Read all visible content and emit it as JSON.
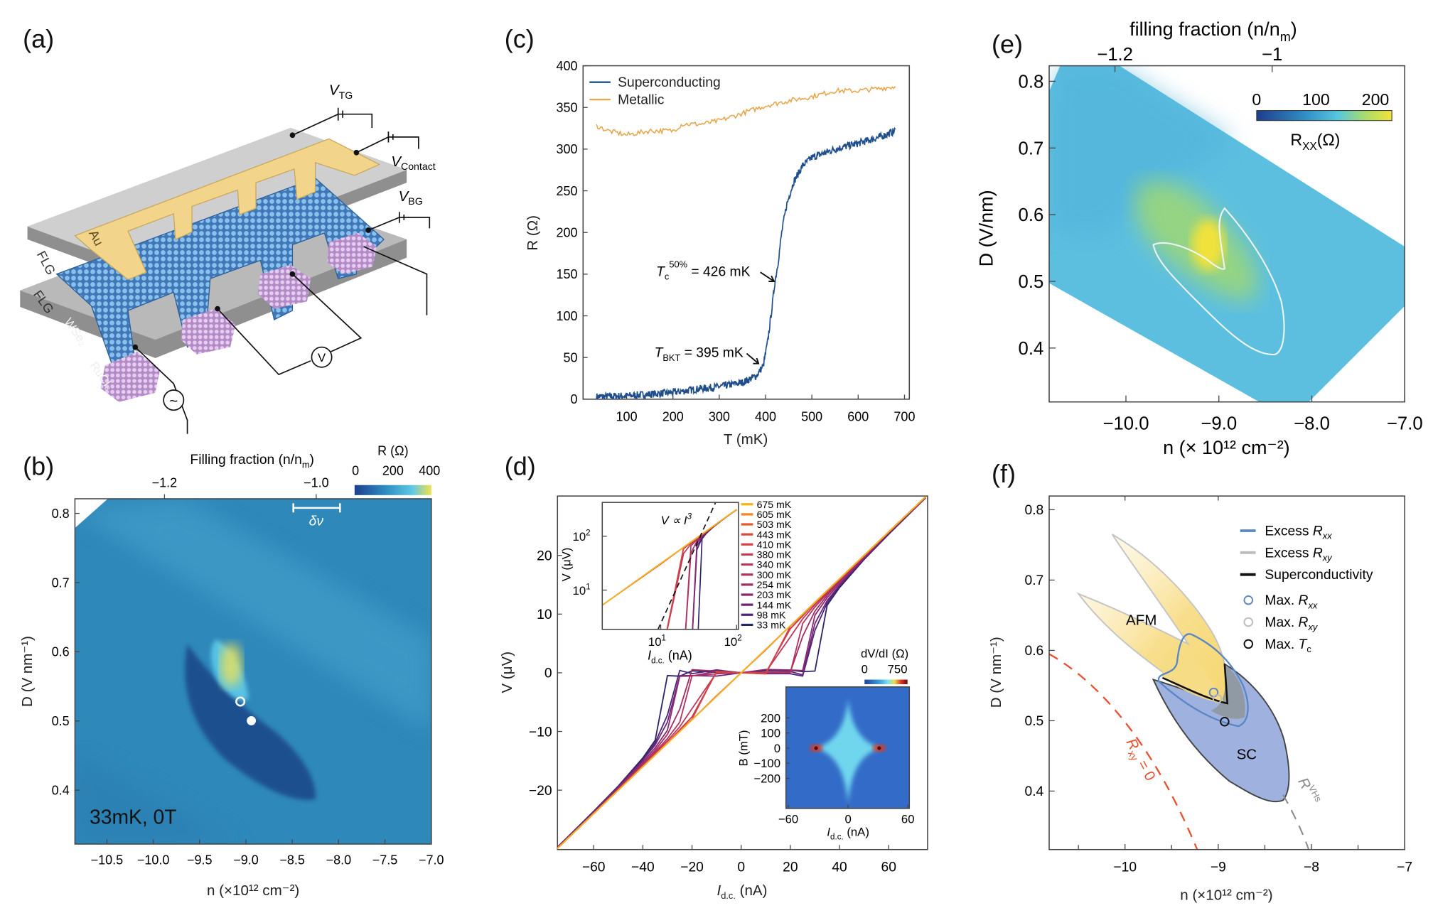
{
  "panel_labels": [
    "(a)",
    "(b)",
    "(c)",
    "(d)",
    "(e)",
    "(f)"
  ],
  "panel_a": {
    "v_tg": "V",
    "v_tg_sub": "TG",
    "v_contact": "V",
    "v_contact_sub": "Contact",
    "v_bg": "V",
    "v_bg_sub": "BG",
    "flg_top": "FLG",
    "au": "Au",
    "flg_bottom": "FLG",
    "wse2": "WSe₂",
    "rucl3": "RuCl₃",
    "voltmeter": "V",
    "ac_source": "~",
    "colors": {
      "gold": "#f2d58a",
      "lattice": "#5b9bd5",
      "pads": "#c9a3d8",
      "slab": "#9a9a9a"
    }
  },
  "chart_data": [
    {
      "panel": "b",
      "type": "heatmap",
      "xlabel": "n (×10¹² cm⁻²)",
      "ylabel": "D (V nm⁻¹)",
      "top_label": "Filling fraction (n/n",
      "top_label_sub": "m",
      "xticks": [
        -10.5,
        -10.0,
        -9.5,
        -9.0,
        -8.5,
        -8.0,
        -7.5,
        -7.0
      ],
      "yticks": [
        0.8,
        0.7,
        0.6,
        0.5,
        0.4
      ],
      "top_ticks": [
        "-1.2",
        "-1.0"
      ],
      "xlim": [
        -10.85,
        -7.0
      ],
      "ylim": [
        0.32,
        0.82
      ],
      "colorbar": {
        "title": "R (Ω)",
        "ticks": [
          "0",
          "200",
          "400"
        ],
        "range": [
          0,
          400
        ],
        "colors": [
          "#1c3f8f",
          "#2e8cc2",
          "#5cc8e6",
          "#f3e24a"
        ]
      },
      "scale_bar": "δν",
      "annotation": "33mK, 0T",
      "markers": [
        {
          "n": -9.03,
          "D": 0.53,
          "style": "hollow"
        },
        {
          "n": -8.92,
          "D": 0.5,
          "style": "filled"
        }
      ]
    },
    {
      "panel": "c",
      "type": "line",
      "xlabel": "T (mK)",
      "ylabel": "R (Ω)",
      "xlim": [
        0,
        710
      ],
      "ylim": [
        0,
        400
      ],
      "xticks": [
        100,
        200,
        300,
        400,
        500,
        600,
        700
      ],
      "yticks": [
        0,
        50,
        100,
        150,
        200,
        250,
        300,
        350,
        400
      ],
      "legend": "top-left",
      "series": [
        {
          "name": "Superconducting",
          "color": "#1f4e8c",
          "x": [
            35,
            100,
            150,
            200,
            250,
            300,
            350,
            380,
            395,
            405,
            415,
            420,
            426,
            435,
            445,
            460,
            480,
            500,
            550,
            600,
            650,
            680
          ],
          "y": [
            3,
            4,
            6,
            8,
            12,
            15,
            20,
            28,
            40,
            70,
            115,
            140,
            160,
            200,
            232,
            260,
            280,
            290,
            300,
            307,
            315,
            322
          ]
        },
        {
          "name": "Metallic",
          "color": "#e8a64a",
          "x": [
            35,
            60,
            100,
            150,
            200,
            220,
            260,
            300,
            350,
            400,
            450,
            500,
            550,
            600,
            650,
            680
          ],
          "y": [
            328,
            322,
            317,
            322,
            322,
            330,
            330,
            334,
            343,
            352,
            358,
            363,
            370,
            370,
            373,
            375
          ]
        }
      ],
      "annotations": [
        {
          "text": "T",
          "sub": "c",
          "sup": "50%",
          "rest": " = 426 mK",
          "x": 426,
          "y": 150
        },
        {
          "text": "T",
          "sub": "BKT",
          "sup": "",
          "rest": " = 395 mK",
          "x": 395,
          "y": 38
        }
      ]
    },
    {
      "panel": "d",
      "type": "line",
      "xlabel": "I",
      "xlabel_sub": "d.c.",
      "xlabel_unit": " (nA)",
      "ylabel": "V (μV)",
      "xlim": [
        -75,
        75
      ],
      "ylim": [
        -30,
        30
      ],
      "xticks": [
        -60,
        -40,
        -20,
        0,
        20,
        40,
        60
      ],
      "yticks": [
        20,
        10,
        0,
        -10,
        -20
      ],
      "current_nA": [
        0,
        10,
        20,
        25,
        30,
        35,
        40,
        50,
        60,
        75
      ],
      "series": [
        {
          "name": "675 mK",
          "color": "#f5b31c",
          "v": [
            0,
            4,
            8,
            10,
            12,
            14,
            16,
            20,
            24,
            30
          ]
        },
        {
          "name": "605 mK",
          "color": "#f08a2a",
          "v": [
            0,
            4,
            8,
            10,
            12,
            14,
            16,
            20,
            24,
            30
          ]
        },
        {
          "name": "503 mK",
          "color": "#e8582f",
          "v": [
            0,
            4,
            8,
            10,
            12,
            14,
            16,
            20,
            24,
            30
          ]
        },
        {
          "name": "443 mK",
          "color": "#dc4a3c",
          "v": [
            0,
            3.9,
            8,
            10,
            12,
            14,
            16,
            20,
            24,
            30
          ]
        },
        {
          "name": "410 mK",
          "color": "#d44347",
          "v": [
            0,
            0,
            7.9,
            9.9,
            12,
            14,
            16,
            20,
            24,
            30
          ]
        },
        {
          "name": "380 mK",
          "color": "#c93c4f",
          "v": [
            0,
            0,
            7.5,
            9.7,
            11.9,
            13.9,
            15.9,
            20,
            24,
            30
          ]
        },
        {
          "name": "340 mK",
          "color": "#bf3757",
          "v": [
            0,
            0,
            6.1,
            9.2,
            11.6,
            13.7,
            15.8,
            19.9,
            24,
            30
          ]
        },
        {
          "name": "300 mK",
          "color": "#b4325e",
          "v": [
            0,
            0,
            0,
            8.4,
            11.2,
            13.5,
            15.7,
            19.8,
            24,
            30
          ]
        },
        {
          "name": "254 mK",
          "color": "#a22c66",
          "v": [
            0,
            0,
            0,
            6.2,
            10.5,
            13.2,
            15.5,
            19.7,
            23.9,
            29.9
          ]
        },
        {
          "name": "203 mK",
          "color": "#8c2770",
          "v": [
            0,
            0,
            0,
            0,
            9.8,
            12.8,
            15.2,
            19.6,
            23.8,
            29.9
          ]
        },
        {
          "name": "144 mK",
          "color": "#6b2479",
          "v": [
            0,
            0,
            0,
            0,
            8.4,
            12.3,
            14.9,
            19.5,
            23.8,
            29.9
          ]
        },
        {
          "name": "98 mK",
          "color": "#4b2378",
          "v": [
            0,
            0,
            0,
            0,
            7.2,
            11.9,
            14.8,
            19.4,
            23.7,
            29.8
          ]
        },
        {
          "name": "33 mK",
          "color": "#2a2466",
          "v": [
            0,
            0,
            0,
            0,
            0,
            11.5,
            14.5,
            19.3,
            23.6,
            29.8
          ]
        }
      ],
      "inset_iv": {
        "type": "line",
        "scale": "log-log",
        "xlabel": "I",
        "xlabel_sub": "d.c.",
        "xlabel_unit": " (nA)",
        "ylabel": "V (μV)",
        "xticks": [
          "10",
          "10"
        ],
        "xtick_exps": [
          "1",
          "2"
        ],
        "yticks": [
          "10",
          "10"
        ],
        "ytick_exps": [
          "1",
          "2"
        ],
        "guide_label": "V ∝ I",
        "guide_exp": "3"
      },
      "inset_map": {
        "type": "heatmap",
        "xlabel": "I",
        "xlabel_sub": "d.c.",
        "xlabel_unit": " (nA)",
        "ylabel": "B (mT)",
        "xticks": [
          -60,
          0,
          60
        ],
        "yticks": [
          200,
          100,
          0,
          -100,
          -200
        ],
        "colorbar": {
          "title": "dV/dI (Ω)",
          "ticks": [
            "0",
            "750"
          ],
          "range": [
            0,
            750
          ],
          "colors": [
            "#1d3f9a",
            "#3aa0e0",
            "#7fe3f0",
            "#e8e04a",
            "#e03020",
            "#6a0a0a"
          ]
        }
      }
    },
    {
      "panel": "e",
      "type": "heatmap",
      "xlabel": "n (× 10¹² cm⁻²)",
      "ylabel": "D (V/nm)",
      "top_label": "filling fraction (n/n",
      "top_label_sub": "m",
      "top_ticks": [
        "-1.2",
        "-1"
      ],
      "xticks": [
        "-10.0",
        "-9.0",
        "-8.0",
        "-7.0"
      ],
      "yticks": [
        "0.8",
        "0.7",
        "0.6",
        "0.5",
        "0.4"
      ],
      "xlim": [
        -10.83,
        -7.0
      ],
      "ylim": [
        0.32,
        0.82
      ],
      "colorbar": {
        "title": "R",
        "title_sub": "XX",
        "title_unit": "(Ω)",
        "ticks": [
          "0",
          "100",
          "200"
        ],
        "range": [
          0,
          200
        ],
        "colors": [
          "#1f3c8c",
          "#2f8cc4",
          "#56c6de",
          "#a8dc6a",
          "#f2e23a"
        ]
      }
    },
    {
      "panel": "f",
      "type": "diagram",
      "xlabel": "n (×10¹² cm⁻²)",
      "ylabel": "D (V nm⁻¹)",
      "xticks": [
        -10,
        -9,
        -8,
        -7
      ],
      "yticks": [
        0.8,
        0.7,
        0.6,
        0.5,
        0.4
      ],
      "xlim": [
        -10.82,
        -7.0
      ],
      "ylim": [
        0.32,
        0.82
      ],
      "legend": {
        "position": "top-right",
        "items": [
          {
            "label": "Excess R",
            "sub": "xx",
            "kind": "line",
            "color": "#5b86c5"
          },
          {
            "label": "Excess R",
            "sub": "xy",
            "kind": "line",
            "color": "#bdbdbd"
          },
          {
            "label": "Superconductivity",
            "sub": "",
            "kind": "line",
            "color": "#111111"
          },
          {
            "label": "Max. R",
            "sub": "xx",
            "kind": "circle",
            "color": "#5b86c5"
          },
          {
            "label": "Max. R",
            "sub": "xy",
            "kind": "circle",
            "color": "#bdbdbd"
          },
          {
            "label": "Max. T",
            "sub": "c",
            "kind": "circle",
            "color": "#111111"
          }
        ]
      },
      "regions": [
        {
          "label": "AFM",
          "color": "#f6dc86"
        },
        {
          "label": "SC",
          "color": "#9aaedd"
        }
      ],
      "curve_labels": [
        {
          "label": "R",
          "sub": "xy",
          "rest": " = 0",
          "color": "#e8512f"
        },
        {
          "label": "R",
          "sup": "VHs",
          "color": "#8a8a8a"
        }
      ],
      "markers": [
        {
          "name": "Max. Rxx",
          "n": -9.06,
          "D": 0.54
        },
        {
          "name": "Max. Rxy",
          "n": -9.03,
          "D": 0.53
        },
        {
          "name": "Max. Tc",
          "n": -8.96,
          "D": 0.5
        }
      ]
    }
  ]
}
